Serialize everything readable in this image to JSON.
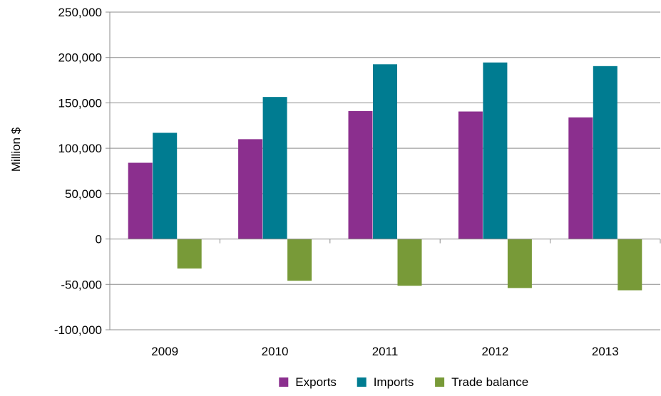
{
  "chart_data": {
    "type": "bar",
    "title": "",
    "xlabel": "",
    "ylabel": "Million $",
    "ylim": [
      -100000,
      250000
    ],
    "yticks": [
      250000,
      200000,
      150000,
      100000,
      50000,
      0,
      -50000,
      -100000
    ],
    "ytick_labels": [
      "250,000",
      "200,000",
      "150,000",
      "100,000",
      "50,000",
      "0",
      "-50,000",
      "-100,000"
    ],
    "categories": [
      "2009",
      "2010",
      "2011",
      "2012",
      "2013"
    ],
    "grid": true,
    "legend_position": "bottom",
    "series": [
      {
        "name": "Exports",
        "color": "#8B2F8E",
        "values": [
          84000,
          110000,
          141000,
          140500,
          134000
        ]
      },
      {
        "name": "Imports",
        "color": "#007C91",
        "values": [
          117000,
          156500,
          192500,
          194500,
          190500
        ]
      },
      {
        "name": "Trade balance",
        "color": "#789A38",
        "values": [
          -32500,
          -46000,
          -51500,
          -54000,
          -56500
        ]
      }
    ]
  }
}
